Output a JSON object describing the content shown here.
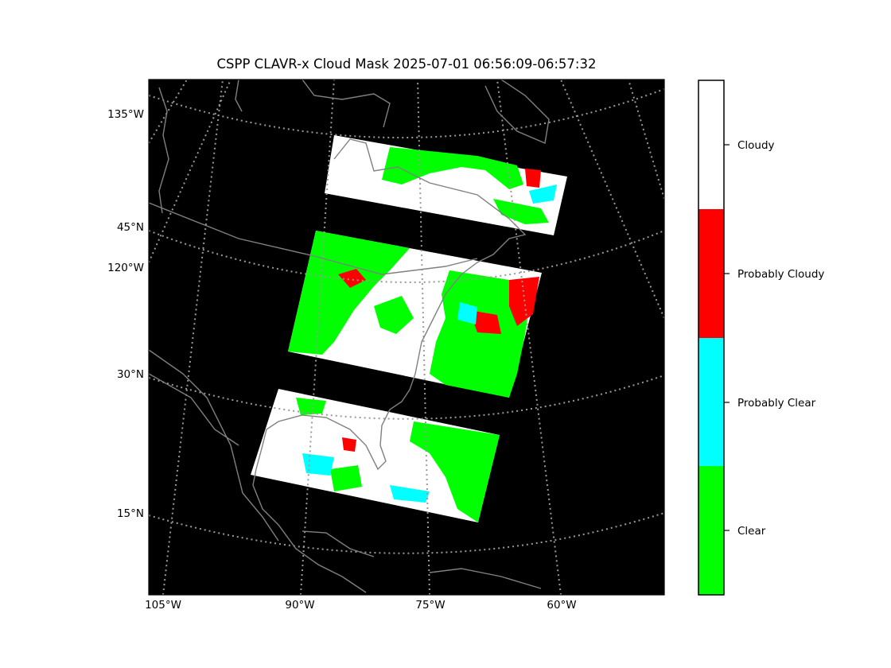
{
  "title": "CSPP CLAVR-x Cloud Mask 2025-07-01 06:56:09-06:57:32",
  "map": {
    "background_color": "#000000",
    "coastline_color": "#808080",
    "graticule_style": "dotted",
    "latitude_labels": [
      "45°N",
      "30°N",
      "15°N"
    ],
    "longitude_labels_left": [
      "135°W",
      "120°W"
    ],
    "longitude_labels_bottom": [
      "105°W",
      "90°W",
      "75°W",
      "60°W"
    ]
  },
  "legend": {
    "type": "discrete colorbar",
    "placement": "right",
    "classes": [
      {
        "label": "Cloudy",
        "color": "#ffffff"
      },
      {
        "label": "Probably Cloudy",
        "color": "#ff0000"
      },
      {
        "label": "Probably Clear",
        "color": "#00ffff"
      },
      {
        "label": "Clear",
        "color": "#00ff00"
      }
    ]
  },
  "granules": [
    {
      "name": "northern granule",
      "dominant_class": "Cloudy"
    },
    {
      "name": "middle granule",
      "dominant_class": "Cloudy"
    },
    {
      "name": "southern granule",
      "dominant_class": "Cloudy"
    }
  ]
}
